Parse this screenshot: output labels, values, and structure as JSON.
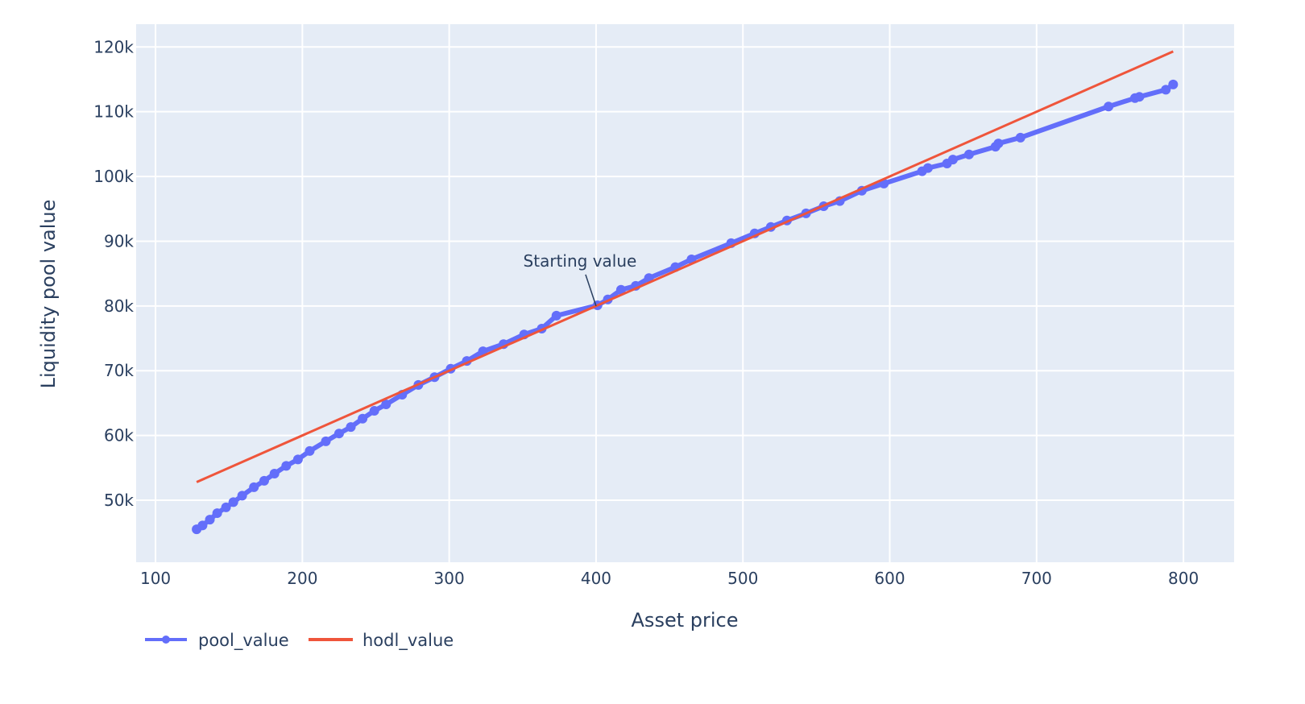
{
  "chart_data": {
    "type": "line",
    "xlabel": "Asset price",
    "ylabel": "Liquidity pool value",
    "xlim": [
      86.8,
      834.5
    ],
    "ylim": [
      40420,
      123520
    ],
    "x_ticks": [
      100,
      200,
      300,
      400,
      500,
      600,
      700,
      800
    ],
    "x_tick_labels": [
      "100",
      "200",
      "300",
      "400",
      "500",
      "600",
      "700",
      "800"
    ],
    "y_ticks": [
      50000,
      60000,
      70000,
      80000,
      90000,
      100000,
      110000,
      120000
    ],
    "y_tick_labels": [
      "50k",
      "60k",
      "70k",
      "80k",
      "90k",
      "100k",
      "110k",
      "120k"
    ],
    "grid": true,
    "background": "#e5ecf6",
    "legend_position": "bottom-left",
    "series": [
      {
        "name": "pool_value",
        "mode": "lines+markers",
        "color": "#636efa",
        "x": [
          128,
          132,
          137,
          142,
          148,
          153,
          159,
          167,
          174,
          181,
          189,
          197,
          205,
          216,
          225,
          233,
          241,
          249,
          257,
          268,
          279,
          290,
          301,
          312,
          323,
          337,
          351,
          363,
          373,
          401,
          408,
          417,
          427,
          436,
          454,
          465,
          492,
          508,
          519,
          530,
          543,
          555,
          566,
          581,
          596,
          622,
          626,
          639,
          643,
          654,
          672,
          674,
          689,
          749,
          767,
          770,
          788,
          793
        ],
        "y": [
          45500,
          46100,
          47000,
          48000,
          48900,
          49700,
          50700,
          52000,
          53000,
          54100,
          55300,
          56300,
          57600,
          59100,
          60300,
          61300,
          62600,
          63800,
          64800,
          66300,
          67800,
          69000,
          70300,
          71500,
          73000,
          74100,
          75600,
          76500,
          78500,
          80100,
          81000,
          82500,
          83100,
          84300,
          86000,
          87200,
          89700,
          91200,
          92200,
          93200,
          94300,
          95400,
          96200,
          97800,
          98900,
          100800,
          101300,
          102000,
          102600,
          103400,
          104600,
          105100,
          106000,
          110800,
          112100,
          112300,
          113400,
          114200
        ]
      },
      {
        "name": "hodl_value",
        "mode": "lines",
        "color": "#ef553b",
        "x": [
          128,
          400,
          793
        ],
        "y": [
          52800,
          80000,
          119300
        ]
      }
    ],
    "annotations": [
      {
        "text": "Starting value",
        "x": 400,
        "y": 80000,
        "arrow": true
      }
    ]
  }
}
